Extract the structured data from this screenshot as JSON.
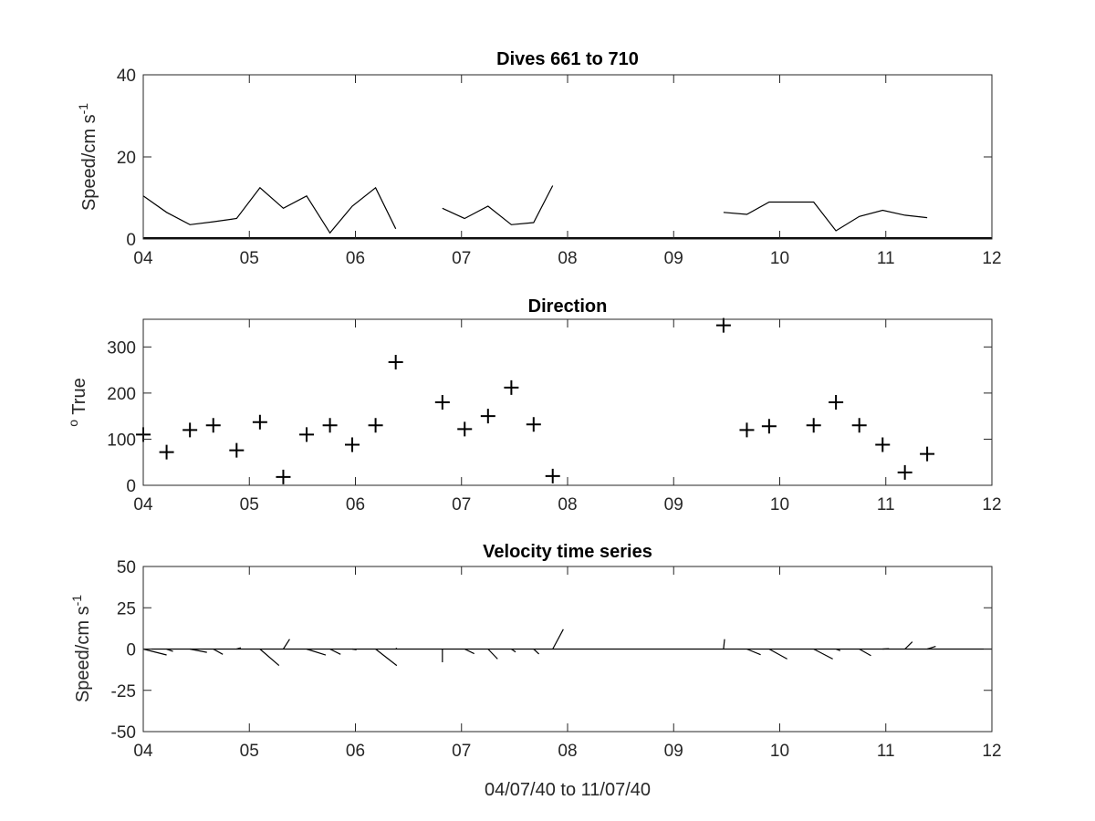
{
  "chart_data": [
    {
      "type": "line",
      "title": "Dives 661 to 710",
      "ylabel": "Speed/cm s",
      "ylabel_sup": "-1",
      "xlim": [
        4,
        12
      ],
      "ylim": [
        0,
        40
      ],
      "xticks": [
        4,
        5,
        6,
        7,
        8,
        9,
        10,
        11,
        12
      ],
      "xtick_labels": [
        "04",
        "05",
        "06",
        "07",
        "08",
        "09",
        "10",
        "11",
        "12"
      ],
      "yticks": [
        0,
        20,
        40
      ],
      "ytick_labels": [
        "0",
        "20",
        "40"
      ],
      "line_color": "#000000",
      "segments": [
        [
          [
            4.0,
            10.5
          ],
          [
            4.22,
            6.5
          ],
          [
            4.44,
            3.5
          ],
          [
            4.66,
            4.2
          ],
          [
            4.88,
            5.0
          ],
          [
            5.1,
            12.5
          ],
          [
            5.32,
            7.5
          ],
          [
            5.54,
            10.5
          ],
          [
            5.76,
            1.5
          ],
          [
            5.97,
            8.0
          ],
          [
            6.19,
            12.5
          ],
          [
            6.38,
            2.5
          ]
        ],
        [
          [
            6.82,
            7.5
          ],
          [
            7.03,
            5.0
          ],
          [
            7.25,
            8.0
          ],
          [
            7.47,
            3.5
          ],
          [
            7.68,
            4.0
          ],
          [
            7.86,
            13.0
          ]
        ],
        [
          [
            9.47,
            6.5
          ],
          [
            9.69,
            6.0
          ],
          [
            9.9,
            9.0
          ],
          [
            10.1,
            9.0
          ],
          [
            10.32,
            9.0
          ],
          [
            10.53,
            2.0
          ],
          [
            10.75,
            5.5
          ],
          [
            10.97,
            7.0
          ],
          [
            11.18,
            5.8
          ],
          [
            11.39,
            5.2
          ]
        ]
      ]
    },
    {
      "type": "scatter",
      "title": "Direction",
      "ylabel": "True",
      "ylabel_degree": "o",
      "xlim": [
        4,
        12
      ],
      "ylim": [
        0,
        360
      ],
      "xticks": [
        4,
        5,
        6,
        7,
        8,
        9,
        10,
        11,
        12
      ],
      "xtick_labels": [
        "04",
        "05",
        "06",
        "07",
        "08",
        "09",
        "10",
        "11",
        "12"
      ],
      "yticks": [
        0,
        100,
        200,
        300
      ],
      "ytick_labels": [
        "0",
        "100",
        "200",
        "300"
      ],
      "marker": "+",
      "marker_color": "#000000",
      "points": [
        [
          4.0,
          110
        ],
        [
          4.22,
          72
        ],
        [
          4.44,
          120
        ],
        [
          4.66,
          130
        ],
        [
          4.88,
          76
        ],
        [
          5.1,
          137
        ],
        [
          5.32,
          18
        ],
        [
          5.54,
          110
        ],
        [
          5.76,
          130
        ],
        [
          5.97,
          88
        ],
        [
          6.19,
          130
        ],
        [
          6.38,
          267
        ],
        [
          6.82,
          180
        ],
        [
          7.03,
          122
        ],
        [
          7.25,
          150
        ],
        [
          7.47,
          212
        ],
        [
          7.68,
          132
        ],
        [
          7.86,
          20
        ],
        [
          9.47,
          347
        ],
        [
          9.69,
          120
        ],
        [
          9.9,
          128
        ],
        [
          10.32,
          130
        ],
        [
          10.53,
          180
        ],
        [
          10.75,
          130
        ],
        [
          10.97,
          88
        ],
        [
          11.18,
          28
        ],
        [
          11.39,
          68
        ]
      ]
    },
    {
      "type": "quiver",
      "title": "Velocity time series",
      "ylabel": "Speed/cm s",
      "ylabel_sup": "-1",
      "xlabel": "04/07/40 to 11/07/40",
      "xlim": [
        4,
        12
      ],
      "ylim": [
        -50,
        50
      ],
      "xticks": [
        4,
        5,
        6,
        7,
        8,
        9,
        10,
        11,
        12
      ],
      "xtick_labels": [
        "04",
        "05",
        "06",
        "07",
        "08",
        "09",
        "10",
        "11",
        "12"
      ],
      "yticks": [
        -50,
        -25,
        0,
        25,
        50
      ],
      "ytick_labels": [
        "-50",
        "-25",
        "0",
        "25",
        "50"
      ],
      "line_color": "#000000",
      "vectors": [
        [
          4.0,
          0.22,
          -3.6
        ],
        [
          4.22,
          0.06,
          -1.4
        ],
        [
          4.44,
          0.16,
          -2.0
        ],
        [
          4.66,
          0.09,
          -3.2
        ],
        [
          4.88,
          0.04,
          0.8
        ],
        [
          5.1,
          0.18,
          -10.0
        ],
        [
          5.32,
          0.06,
          6.0
        ],
        [
          5.54,
          0.18,
          -3.6
        ],
        [
          5.76,
          0.1,
          -3.2
        ],
        [
          5.97,
          0.04,
          -0.4
        ],
        [
          6.19,
          0.2,
          -10.0
        ],
        [
          6.38,
          0.01,
          0.6
        ],
        [
          6.82,
          0.0,
          -8.0
        ],
        [
          7.03,
          0.09,
          -2.8
        ],
        [
          7.25,
          0.09,
          -6.0
        ],
        [
          7.47,
          0.04,
          -1.8
        ],
        [
          7.68,
          0.05,
          -3.0
        ],
        [
          7.86,
          0.1,
          12.0
        ],
        [
          9.47,
          0.01,
          6.0
        ],
        [
          9.69,
          0.13,
          -3.4
        ],
        [
          9.9,
          0.17,
          -6.0
        ],
        [
          10.32,
          0.18,
          -6.0
        ],
        [
          10.53,
          0.04,
          -1.0
        ],
        [
          10.75,
          0.11,
          -4.0
        ],
        [
          10.97,
          0.06,
          0.2
        ],
        [
          11.18,
          0.07,
          4.4
        ],
        [
          11.39,
          0.08,
          1.6
        ]
      ]
    }
  ]
}
